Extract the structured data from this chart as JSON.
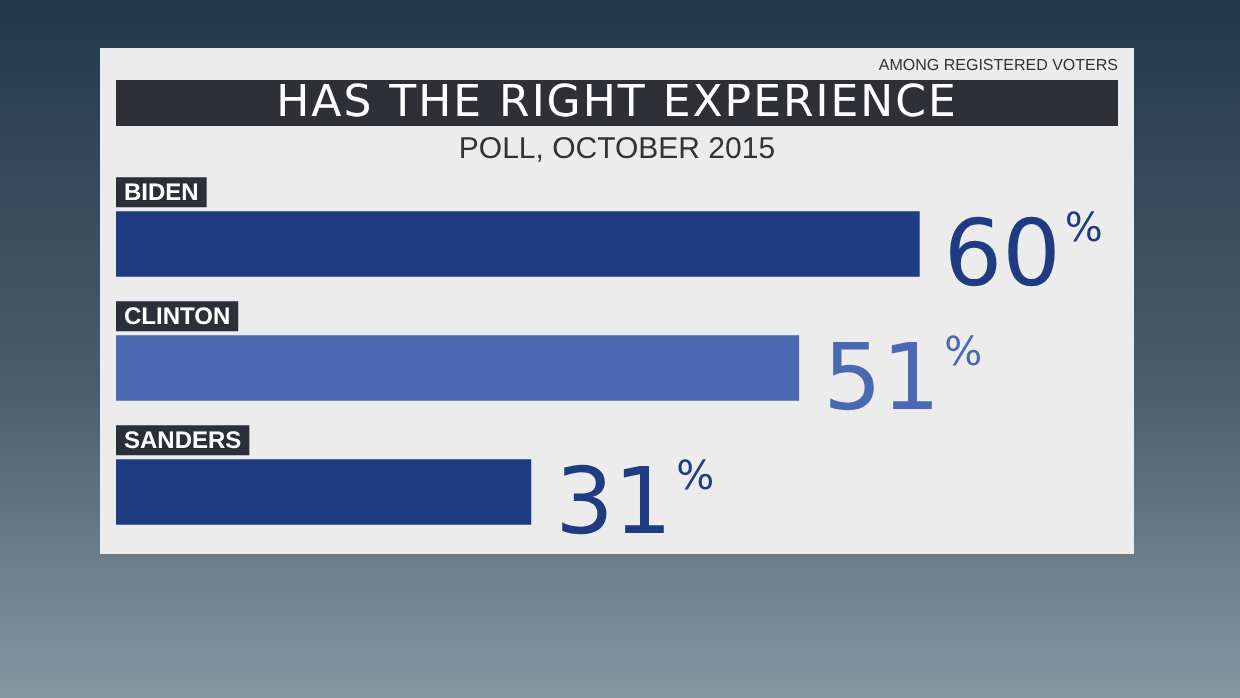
{
  "chart_data": {
    "type": "bar",
    "orientation": "horizontal",
    "title": "HAS THE RIGHT EXPERIENCE",
    "subtitle": "POLL, OCTOBER 2015",
    "annotations": [
      "AMONG REGISTERED VOTERS"
    ],
    "categories": [
      "BIDEN",
      "CLINTON",
      "SANDERS"
    ],
    "values": [
      60,
      51,
      31
    ],
    "colors": [
      "#1f3b82",
      "#4b68b2",
      "#1f3b82"
    ],
    "value_labels": [
      "60%",
      "51%",
      "31%"
    ],
    "xlim": [
      0,
      76
    ],
    "legend": false
  }
}
